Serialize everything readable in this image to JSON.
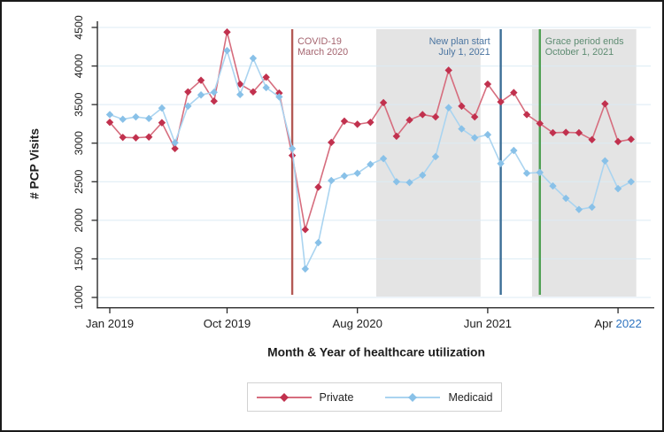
{
  "figure": {
    "background": "#ffffff",
    "border_color": "#1a1a1a"
  },
  "chart_data": {
    "type": "line",
    "title": "",
    "xlabel": "Month & Year of healthcare utilization",
    "ylabel": "# PCP Visits",
    "x_unit": "month",
    "x_start": "Jan 2019",
    "x_end": "May 2022",
    "ylim": [
      1000,
      4500
    ],
    "grid": true,
    "gridline_color": "#dcebf4",
    "axis_color": "#2b2b2b",
    "tick_label_color": "#1d1d1d",
    "yticks": [
      1000,
      1500,
      2000,
      2500,
      3000,
      3500,
      4000,
      4500
    ],
    "xticks": [
      {
        "label": "Jan 2019",
        "month": 0
      },
      {
        "label": "Oct 2019",
        "month": 9
      },
      {
        "label": "Aug 2020",
        "month": 19
      },
      {
        "label": "Jun 2021",
        "month": 29
      },
      {
        "label": "Apr 2022",
        "month": 39,
        "parts": [
          {
            "text": "Apr ",
            "color": "#1d1d1d"
          },
          {
            "text": "2022",
            "color": "#2f74c0"
          }
        ]
      }
    ],
    "series": [
      {
        "name": "Private",
        "line_color": "#d66d7e",
        "marker_color": "#c1314e",
        "marker": "diamond",
        "values": [
          3270,
          3075,
          3070,
          3080,
          3265,
          2930,
          3665,
          3815,
          3545,
          4440,
          3765,
          3665,
          3855,
          3650,
          2840,
          1880,
          2430,
          3010,
          3285,
          3245,
          3270,
          3525,
          3090,
          3300,
          3370,
          3340,
          3945,
          3480,
          3340,
          3765,
          3535,
          3655,
          3370,
          3255,
          3135,
          3140,
          3135,
          3045,
          3510,
          3020,
          3050
        ]
      },
      {
        "name": "Medicaid",
        "line_color": "#aad4f0",
        "marker_color": "#89c1e8",
        "marker": "diamond",
        "values": [
          3370,
          3310,
          3340,
          3320,
          3455,
          3005,
          3480,
          3625,
          3660,
          4200,
          3630,
          4100,
          3720,
          3600,
          2930,
          1370,
          1710,
          2515,
          2575,
          2610,
          2725,
          2800,
          2500,
          2490,
          2585,
          2825,
          3460,
          3185,
          3070,
          3110,
          2735,
          2905,
          2610,
          2620,
          2445,
          2285,
          2140,
          2170,
          2770,
          2410,
          2500
        ]
      }
    ],
    "shaded_bands": [
      {
        "from_month": 20.45,
        "to_month": 28.45,
        "color": "#e4e4e4"
      },
      {
        "from_month": 32.4,
        "to_month": 40.4,
        "color": "#e4e4e4"
      }
    ],
    "vlines": [
      {
        "month": 14,
        "color": "#b35a55",
        "label_lines": [
          "COVID-19",
          "March 2020"
        ],
        "label_color": "#a4636e",
        "label_side": "right"
      },
      {
        "month": 30,
        "color": "#3c6e96",
        "label_lines": [
          "New plan start",
          "July 1, 2021"
        ],
        "label_color": "#4a74a0",
        "label_side": "left"
      },
      {
        "month": 33,
        "color": "#4c9e50",
        "label_lines": [
          "Grace period ends",
          "October 1, 2021"
        ],
        "label_color": "#5d8b71",
        "label_side": "right"
      }
    ],
    "legend": {
      "position": "bottom-center",
      "entries": [
        "Private",
        "Medicaid"
      ]
    }
  }
}
